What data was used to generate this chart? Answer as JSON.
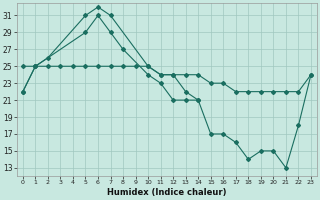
{
  "bg_color": "#c8e8e0",
  "grid_color": "#a0c8c0",
  "line_color": "#1a6e60",
  "xlabel": "Humidex (Indice chaleur)",
  "xlim": [
    -0.5,
    23.5
  ],
  "ylim": [
    12,
    32.5
  ],
  "yticks": [
    13,
    15,
    17,
    19,
    21,
    23,
    25,
    27,
    29,
    31
  ],
  "xticks": [
    0,
    1,
    2,
    3,
    4,
    5,
    6,
    7,
    8,
    9,
    10,
    11,
    12,
    13,
    14,
    15,
    16,
    17,
    18,
    19,
    20,
    21,
    22,
    23
  ],
  "line_A_x": [
    0,
    1,
    2,
    5,
    6,
    7,
    10,
    11,
    12,
    13,
    14
  ],
  "line_A_y": [
    22,
    25,
    26,
    31,
    32,
    31,
    25,
    24,
    24,
    22,
    21
  ],
  "line_B_x": [
    0,
    1,
    5,
    6,
    7,
    8,
    10,
    11,
    12,
    13,
    14,
    15,
    16,
    17,
    18,
    19,
    20,
    21,
    22,
    23
  ],
  "line_B_y": [
    22,
    25,
    29,
    31,
    29,
    27,
    24,
    23,
    21,
    21,
    21,
    17,
    17,
    16,
    14,
    15,
    15,
    13,
    18,
    24
  ],
  "line_C_x": [
    0,
    1,
    2,
    3,
    4,
    5,
    6,
    7,
    8,
    9,
    10,
    11,
    12,
    13,
    14,
    15,
    16,
    17,
    18,
    19,
    20,
    21,
    22,
    23
  ],
  "line_C_y": [
    25,
    25,
    25,
    25,
    25,
    25,
    25,
    25,
    25,
    25,
    25,
    24,
    24,
    24,
    24,
    23,
    23,
    22,
    22,
    22,
    22,
    22,
    22,
    24
  ]
}
